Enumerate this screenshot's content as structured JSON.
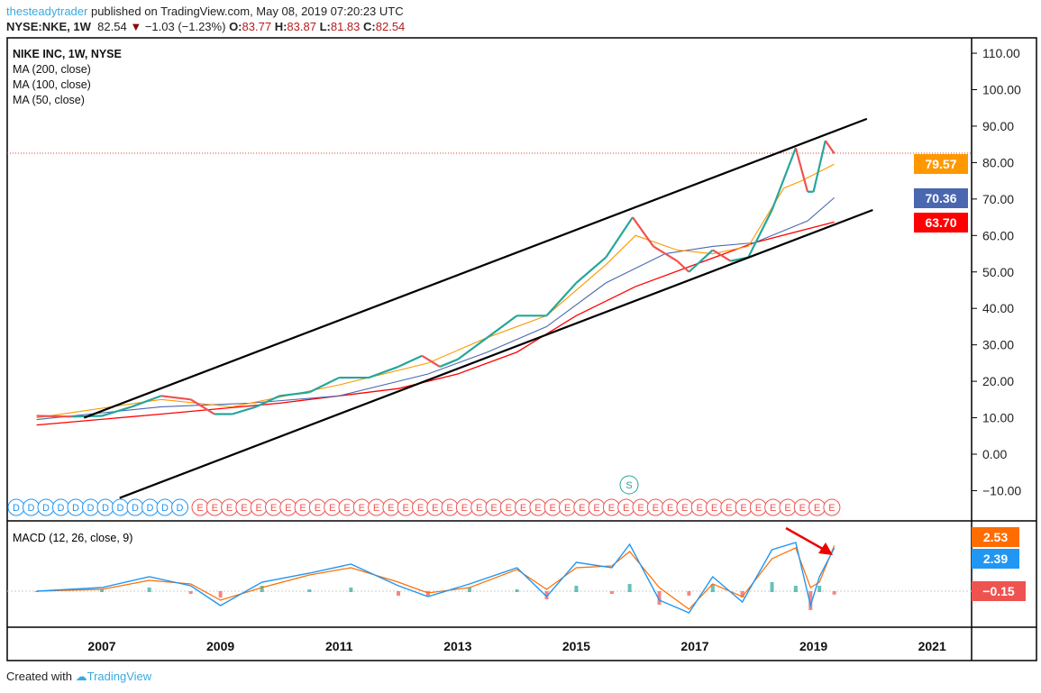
{
  "header": {
    "author": "thesteadytrader",
    "published": "published on TradingView.com, May 08, 2019 07:20:23 UTC",
    "symbol": "NYSE:NKE, 1W",
    "last": "82.54",
    "change": "−1.03 (−1.23%)",
    "o_label": "O:",
    "o": "83.77",
    "h_label": "H:",
    "h": "83.87",
    "l_label": "L:",
    "l": "81.83",
    "c_label": "C:",
    "c": "82.54"
  },
  "legend": {
    "title": "NIKE INC, 1W, NYSE",
    "ma200": "MA (200, close)",
    "ma100": "MA (100, close)",
    "ma50": "MA (50, close)"
  },
  "tags": {
    "ma50": "79.57",
    "ma100": "70.36",
    "ma200": "63.70",
    "macd_signal": "2.53",
    "macd": "2.39",
    "hist": "−0.15"
  },
  "colors": {
    "ma50": "#ff9800",
    "ma100": "#4a67b0",
    "ma200": "#ff0000",
    "up": "#26a69a",
    "down": "#ef5350",
    "macd": "#2196f3",
    "signal": "#ff6d00"
  },
  "macd_label": "MACD (12, 26, close, 9)",
  "footer": {
    "created": "Created with",
    "brand": "TradingView"
  },
  "events": {
    "dividend": "D",
    "earnings": "E",
    "split": "S"
  },
  "chart_data": {
    "type": "line",
    "title": "NIKE INC, 1W, NYSE",
    "ylim": [
      -15,
      115
    ],
    "yticks": [
      "110.00",
      "100.00",
      "90.00",
      "80.00",
      "70.00",
      "60.00",
      "50.00",
      "40.00",
      "30.00",
      "20.00",
      "10.00",
      "0.00",
      "−10.00"
    ],
    "ytick_values": [
      110,
      100,
      90,
      80,
      70,
      60,
      50,
      40,
      30,
      20,
      10,
      0,
      -10
    ],
    "xticks": [
      "2007",
      "2009",
      "2011",
      "2013",
      "2015",
      "2017",
      "2019",
      "2021"
    ],
    "xtick_values": [
      2007,
      2009,
      2011,
      2013,
      2015,
      2017,
      2019,
      2021
    ],
    "price": {
      "x": [
        2005.9,
        2006.5,
        2007,
        2007.5,
        2008,
        2008.5,
        2008.9,
        2009.2,
        2009.6,
        2010,
        2010.5,
        2011,
        2011.5,
        2012,
        2012.4,
        2012.7,
        2013,
        2013.5,
        2014,
        2014.5,
        2015,
        2015.5,
        2015.95,
        2016.3,
        2016.7,
        2016.9,
        2017.3,
        2017.6,
        2017.9,
        2018.3,
        2018.7,
        2018.9,
        2019.0,
        2019.2,
        2019.35
      ],
      "y": [
        10.5,
        10.3,
        10.5,
        13,
        16,
        15,
        11,
        11,
        13,
        16,
        17,
        21,
        21,
        24,
        27,
        24,
        26,
        32,
        38,
        38,
        47,
        54,
        65,
        57,
        53,
        50,
        56,
        53,
        54,
        67,
        84,
        72,
        72,
        86,
        82.5
      ]
    },
    "ma200": {
      "x": [
        2005.9,
        2008,
        2010,
        2012,
        2013,
        2014,
        2015,
        2016,
        2017,
        2018,
        2019.35
      ],
      "y": [
        8,
        11,
        14,
        18,
        22,
        28,
        38,
        46,
        52,
        58,
        63.7
      ]
    },
    "ma100": {
      "x": [
        2005.9,
        2008,
        2009.5,
        2011,
        2012.5,
        2013.5,
        2014.5,
        2015.5,
        2016.5,
        2017.3,
        2018,
        2018.9,
        2019.35
      ],
      "y": [
        9.5,
        13,
        14,
        16,
        22,
        28,
        35,
        47,
        55,
        57,
        58,
        64,
        70.36
      ]
    },
    "ma50": {
      "x": [
        2005.9,
        2008,
        2009.2,
        2011,
        2012.5,
        2013.5,
        2014.5,
        2015.5,
        2016,
        2016.7,
        2017.3,
        2017.9,
        2018.5,
        2018.8,
        2019.35
      ],
      "y": [
        10,
        15,
        13,
        19,
        25,
        32,
        38,
        52,
        60,
        56,
        55,
        57,
        73,
        75,
        79.57
      ]
    },
    "trendlines": [
      {
        "x": [
          2006.7,
          2019.9
        ],
        "y": [
          10,
          92
        ]
      },
      {
        "x": [
          2007.3,
          2020
        ],
        "y": [
          -12,
          67
        ]
      }
    ],
    "macd": {
      "x": [
        2005.9,
        2007,
        2007.8,
        2008.5,
        2009,
        2009.7,
        2010.5,
        2011.2,
        2012,
        2012.5,
        2013.2,
        2014,
        2014.5,
        2015,
        2015.6,
        2015.9,
        2016.4,
        2016.9,
        2017.3,
        2017.8,
        2018.3,
        2018.7,
        2018.95,
        2019.1,
        2019.35
      ],
      "y": [
        0,
        0.2,
        0.8,
        0.3,
        -0.8,
        0.5,
        1,
        1.5,
        0.3,
        -0.3,
        0.4,
        1.3,
        -0.3,
        1.6,
        1.3,
        2.6,
        -0.5,
        -1.2,
        0.8,
        -0.6,
        2.3,
        2.7,
        -0.8,
        0.8,
        2.39
      ]
    },
    "signal": {
      "x": [
        2005.9,
        2007,
        2007.8,
        2008.5,
        2009,
        2009.7,
        2010.5,
        2011.2,
        2012,
        2012.5,
        2013.2,
        2014,
        2014.5,
        2015,
        2015.6,
        2015.9,
        2016.4,
        2016.9,
        2017.3,
        2017.8,
        2018.3,
        2018.7,
        2018.95,
        2019.1,
        2019.35
      ],
      "y": [
        0,
        0.1,
        0.6,
        0.4,
        -0.5,
        0.2,
        0.9,
        1.3,
        0.5,
        -0.1,
        0.2,
        1.2,
        0.1,
        1.3,
        1.4,
        2.2,
        0.2,
        -1.0,
        0.4,
        -0.3,
        1.8,
        2.4,
        0.2,
        0.5,
        2.53
      ]
    },
    "macd_ylim": [
      -2,
      4
    ]
  }
}
